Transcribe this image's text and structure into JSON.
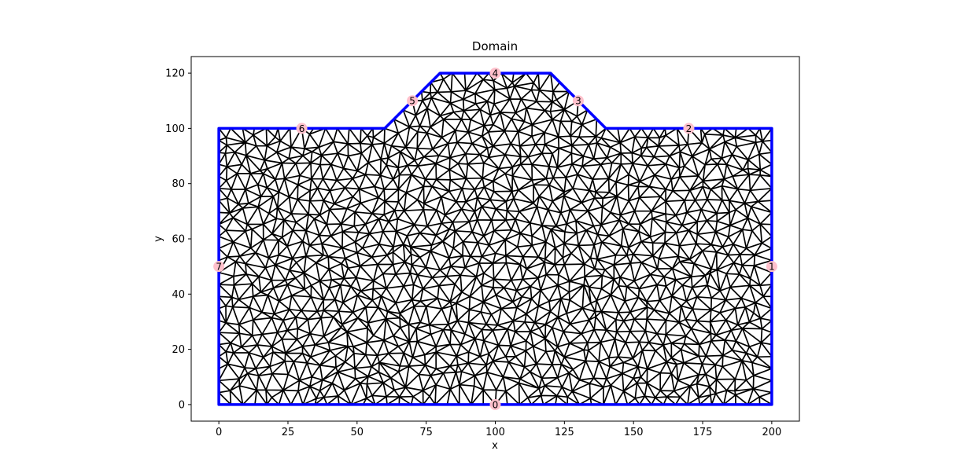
{
  "figure": {
    "title": "Domain",
    "xlabel": "x",
    "ylabel": "y"
  },
  "axes": {
    "xlim": [
      -10,
      210
    ],
    "ylim": [
      -6,
      126
    ],
    "xticks": [
      0,
      25,
      50,
      75,
      100,
      125,
      150,
      175,
      200
    ],
    "yticks": [
      0,
      20,
      40,
      60,
      80,
      100,
      120
    ]
  },
  "colors": {
    "boundary": "#0000ff",
    "mesh": "#000000",
    "marker_fill": "#ffc0cb",
    "marker_text": "#000000"
  },
  "mesh": {
    "target_spacing": 4.6,
    "seed": 17
  },
  "boundary": {
    "vertices": [
      [
        0,
        0
      ],
      [
        200,
        0
      ],
      [
        200,
        100
      ],
      [
        140,
        100
      ],
      [
        120,
        120
      ],
      [
        80,
        120
      ],
      [
        60,
        100
      ],
      [
        0,
        100
      ]
    ]
  },
  "segment_markers": [
    {
      "label": "0",
      "x": 100,
      "y": 0
    },
    {
      "label": "1",
      "x": 200,
      "y": 50
    },
    {
      "label": "2",
      "x": 170,
      "y": 100
    },
    {
      "label": "3",
      "x": 130,
      "y": 110
    },
    {
      "label": "4",
      "x": 100,
      "y": 120
    },
    {
      "label": "5",
      "x": 70,
      "y": 110
    },
    {
      "label": "6",
      "x": 30,
      "y": 100
    },
    {
      "label": "7",
      "x": 0,
      "y": 50
    }
  ]
}
